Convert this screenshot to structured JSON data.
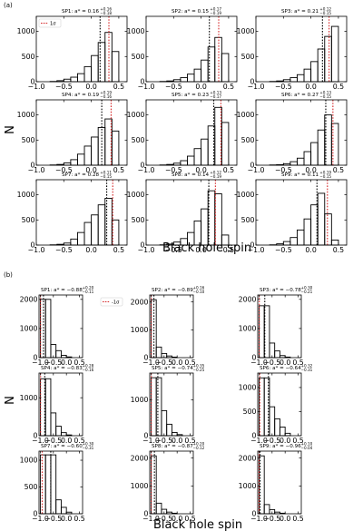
{
  "figure_parts": [
    {
      "letter": "(a)",
      "ylabel": "N",
      "xlabel": "Black hole spin",
      "legend_label": "1σ"
    },
    {
      "letter": "(b)",
      "ylabel": "N",
      "xlabel": "Black hole spin",
      "legend_label": "-1σ"
    }
  ],
  "chart_data": [
    {
      "type": "histogram-grid",
      "figure_label": "(a)",
      "xlabel": "Black hole spin",
      "ylabel": "N",
      "xlim": [
        -1.0,
        0.65
      ],
      "ylim": [
        0,
        1300
      ],
      "x_ticks": [
        -1.0,
        -0.5,
        0.0,
        0.5
      ],
      "x_tick_labels": [
        "−1.0",
        "−0.5",
        "0.0",
        "0.5"
      ],
      "y_ticks": [
        0,
        500,
        1000
      ],
      "y_tick_labels": [
        "0",
        "500",
        "1000"
      ],
      "bin_edges": [
        -1.0,
        -0.875,
        -0.75,
        -0.625,
        -0.5,
        -0.375,
        -0.25,
        -0.125,
        0.0,
        0.125,
        0.25,
        0.375,
        0.5
      ],
      "legend": {
        "label": "1σ",
        "line_color": "#d62728",
        "placement": "top-left",
        "shown_in": "SP1"
      },
      "panels": [
        {
          "name": "SP1",
          "median": "0.16",
          "err_up": "+0.16",
          "err_down": "−0.18",
          "median_value": 0.16,
          "sigma_value": 0.32,
          "counts": [
            0,
            0,
            5,
            20,
            50,
            90,
            160,
            300,
            520,
            780,
            980,
            600,
            0
          ]
        },
        {
          "name": "SP2",
          "median": "0.15",
          "err_up": "+0.17",
          "err_down": "−0.19",
          "median_value": 0.15,
          "sigma_value": 0.32,
          "counts": [
            0,
            0,
            5,
            15,
            40,
            80,
            150,
            250,
            430,
            690,
            880,
            560,
            0
          ]
        },
        {
          "name": "SP3",
          "median": "0.21",
          "err_up": "+0.12",
          "err_down": "−0.15",
          "median_value": 0.21,
          "sigma_value": 0.33,
          "counts": [
            0,
            0,
            5,
            15,
            40,
            80,
            140,
            250,
            400,
            650,
            900,
            1100,
            0
          ]
        },
        {
          "name": "SP4",
          "median": "0.19",
          "err_up": "+0.19",
          "err_down": "−0.16",
          "median_value": 0.19,
          "sigma_value": 0.36,
          "counts": [
            0,
            0,
            5,
            15,
            45,
            110,
            220,
            380,
            560,
            750,
            920,
            680,
            0
          ]
        },
        {
          "name": "SP5",
          "median": "0.23",
          "err_up": "+0.13",
          "err_down": "−0.17",
          "median_value": 0.23,
          "sigma_value": 0.36,
          "counts": [
            0,
            0,
            5,
            15,
            40,
            90,
            180,
            330,
            520,
            780,
            1150,
            850,
            0
          ]
        },
        {
          "name": "SP6",
          "median": "0.27",
          "err_up": "+0.13",
          "err_down": "−0.15",
          "median_value": 0.27,
          "sigma_value": 0.4,
          "counts": [
            0,
            0,
            5,
            10,
            30,
            70,
            140,
            270,
            450,
            700,
            1000,
            830,
            0
          ]
        },
        {
          "name": "SP7",
          "median": "0.28",
          "err_up": "+0.11",
          "err_down": "−0.15",
          "median_value": 0.28,
          "sigma_value": 0.39,
          "counts": [
            0,
            0,
            5,
            15,
            40,
            120,
            250,
            450,
            600,
            800,
            930,
            500,
            0
          ]
        },
        {
          "name": "SP8",
          "median": "0.14",
          "err_up": "+0.12",
          "err_down": "−0.19",
          "median_value": 0.14,
          "sigma_value": 0.26,
          "counts": [
            0,
            0,
            5,
            20,
            60,
            130,
            250,
            480,
            720,
            1080,
            1020,
            200,
            0
          ]
        },
        {
          "name": "SP9",
          "median": "0.11",
          "err_up": "+0.19",
          "err_down": "−0.15",
          "median_value": 0.11,
          "sigma_value": 0.3,
          "counts": [
            0,
            0,
            5,
            25,
            70,
            150,
            300,
            520,
            800,
            1030,
            620,
            100,
            0
          ]
        }
      ]
    },
    {
      "type": "histogram-grid",
      "figure_label": "(b)",
      "xlabel": "Black hole spin",
      "ylabel": "N",
      "xlim": [
        -1.05,
        0.62
      ],
      "x_ticks": [
        -1.0,
        -0.5,
        0.0,
        0.5
      ],
      "x_tick_labels": [
        "−1.0",
        "−0.5",
        "0.0",
        "0.5"
      ],
      "bin_edges": [
        -1.0,
        -0.8,
        -0.6,
        -0.4,
        -0.2,
        0.0,
        0.2,
        0.4,
        0.6
      ],
      "legend": {
        "label": "-1σ",
        "line_color": "#d62728",
        "placement": "top-right",
        "shown_in": "SP1"
      },
      "panels": [
        {
          "name": "SP1",
          "median": "−0.88",
          "err_up": "+0.20",
          "err_down": "−0.11",
          "median_value": -0.88,
          "sigma_value": -0.99,
          "counts": [
            2000,
            2000,
            450,
            240,
            80,
            25,
            0,
            0
          ],
          "ylim": [
            0,
            2150
          ],
          "y_ticks": [
            0,
            1000,
            2000
          ],
          "y_tick_labels": [
            "0",
            "1000",
            "2000"
          ]
        },
        {
          "name": "SP2",
          "median": "−0.89",
          "err_up": "+0.16",
          "err_down": "−0.10",
          "median_value": -0.89,
          "sigma_value": -0.99,
          "counts": [
            2080,
            380,
            150,
            60,
            20,
            0,
            0,
            0
          ],
          "ylim": [
            0,
            2250
          ],
          "y_ticks": [
            0,
            1000,
            2000
          ],
          "y_tick_labels": [
            "0",
            "1000",
            "2000"
          ]
        },
        {
          "name": "SP3",
          "median": "−0.78",
          "err_up": "+0.30",
          "err_down": "−0.21",
          "median_value": -0.78,
          "sigma_value": -0.99,
          "counts": [
            1780,
            1780,
            500,
            230,
            70,
            20,
            0,
            0
          ],
          "ylim": [
            0,
            2150
          ],
          "y_ticks": [
            0,
            1000,
            2000
          ],
          "y_tick_labels": [
            "0",
            "1000",
            "2000"
          ]
        },
        {
          "name": "SP4",
          "median": "−0.83",
          "err_up": "+0.28",
          "err_down": "−0.16",
          "median_value": -0.83,
          "sigma_value": -0.99,
          "counts": [
            1500,
            1500,
            600,
            250,
            80,
            20,
            0,
            0
          ],
          "ylim": [
            0,
            1650
          ],
          "y_ticks": [
            0,
            1000
          ],
          "y_tick_labels": [
            "0",
            "1000"
          ]
        },
        {
          "name": "SP5",
          "median": "−0.74",
          "err_up": "+0.35",
          "err_down": "−0.25",
          "median_value": -0.74,
          "sigma_value": -0.99,
          "counts": [
            1620,
            1620,
            700,
            320,
            90,
            30,
            0,
            0
          ],
          "ylim": [
            0,
            1750
          ],
          "y_ticks": [
            0,
            1000
          ],
          "y_tick_labels": [
            "0",
            "1000"
          ]
        },
        {
          "name": "SP6",
          "median": "−0.64",
          "err_up": "+0.32",
          "err_down": "−0.31",
          "median_value": -0.64,
          "sigma_value": -0.97,
          "counts": [
            1200,
            1200,
            600,
            350,
            180,
            50,
            0,
            0
          ],
          "ylim": [
            0,
            1300
          ],
          "y_ticks": [
            0,
            500,
            1000
          ],
          "y_tick_labels": [
            "0",
            "500",
            "1000"
          ]
        },
        {
          "name": "SP7",
          "median": "−0.60",
          "err_up": "+0.30",
          "err_down": "−0.31",
          "median_value": -0.6,
          "sigma_value": -0.93,
          "counts": [
            1100,
            1100,
            1100,
            260,
            120,
            30,
            0,
            0
          ],
          "ylim": [
            0,
            1170
          ],
          "y_ticks": [
            0,
            500,
            1000
          ],
          "y_tick_labels": [
            "0",
            "500",
            "1000"
          ]
        },
        {
          "name": "SP8",
          "median": "−0.87",
          "err_up": "+0.20",
          "err_down": "−0.12",
          "median_value": -0.87,
          "sigma_value": -0.99,
          "counts": [
            2080,
            380,
            160,
            60,
            20,
            0,
            0,
            0
          ],
          "ylim": [
            0,
            2250
          ],
          "y_ticks": [
            0,
            1000,
            2000
          ],
          "y_tick_labels": [
            "0",
            "1000",
            "2000"
          ]
        },
        {
          "name": "SP9",
          "median": "−0.96",
          "err_up": "+0.10",
          "err_down": "−0.04",
          "median_value": -0.96,
          "sigma_value": -1.0,
          "counts": [
            2080,
            330,
            150,
            60,
            20,
            0,
            0,
            0
          ],
          "ylim": [
            0,
            2250
          ],
          "y_ticks": [
            0,
            1000,
            2000
          ],
          "y_tick_labels": [
            "0",
            "1000",
            "2000"
          ]
        }
      ]
    }
  ]
}
